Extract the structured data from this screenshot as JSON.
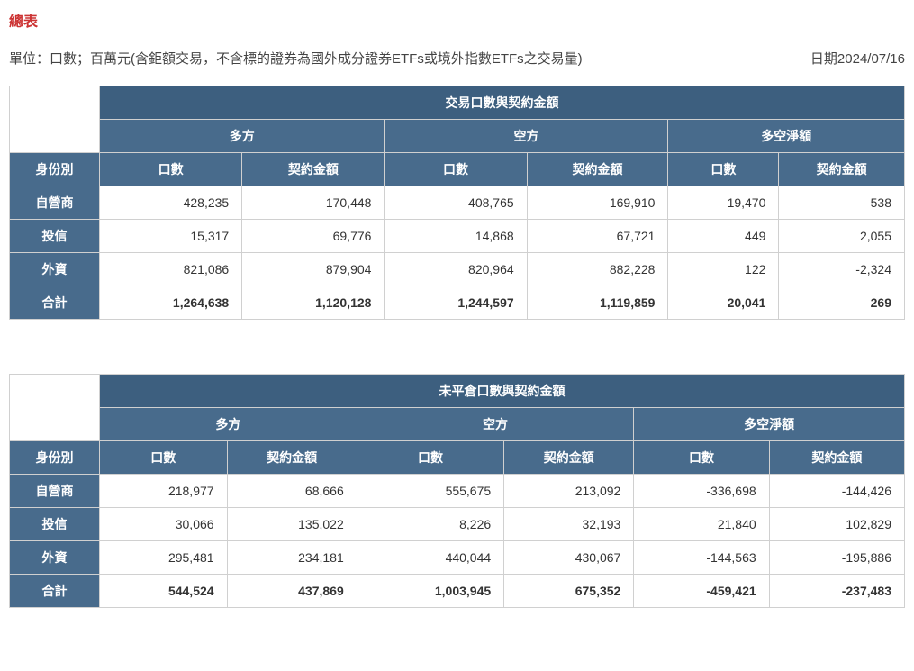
{
  "title": "總表",
  "unit_note": "單位：口數；百萬元(含鉅額交易，不含標的證券為國外成分證券ETFs或境外指數ETFs之交易量)",
  "date_label": "日期",
  "date_value": "2024/07/16",
  "labels": {
    "identity": "身份別",
    "long": "多方",
    "short": "空方",
    "net": "多空淨額",
    "contracts": "口數",
    "amount": "契約金額"
  },
  "table1": {
    "header_main": "交易口數與契約金額",
    "rows": [
      {
        "name": "自營商",
        "v": [
          "428,235",
          "170,448",
          "408,765",
          "169,910",
          "19,470",
          "538"
        ]
      },
      {
        "name": "投信",
        "v": [
          "15,317",
          "69,776",
          "14,868",
          "67,721",
          "449",
          "2,055"
        ]
      },
      {
        "name": "外資",
        "v": [
          "821,086",
          "879,904",
          "820,964",
          "882,228",
          "122",
          "-2,324"
        ]
      },
      {
        "name": "合計",
        "v": [
          "1,264,638",
          "1,120,128",
          "1,244,597",
          "1,119,859",
          "20,041",
          "269"
        ]
      }
    ]
  },
  "table2": {
    "header_main": "未平倉口數與契約金額",
    "rows": [
      {
        "name": "自營商",
        "v": [
          "218,977",
          "68,666",
          "555,675",
          "213,092",
          "-336,698",
          "-144,426"
        ]
      },
      {
        "name": "投信",
        "v": [
          "30,066",
          "135,022",
          "8,226",
          "32,193",
          "21,840",
          "102,829"
        ]
      },
      {
        "name": "外資",
        "v": [
          "295,481",
          "234,181",
          "440,044",
          "430,067",
          "-144,563",
          "-195,886"
        ]
      },
      {
        "name": "合計",
        "v": [
          "544,524",
          "437,869",
          "1,003,945",
          "675,352",
          "-459,421",
          "-237,483"
        ]
      }
    ]
  },
  "colors": {
    "title": "#cc3333",
    "header_bg": "#3d5f7f",
    "subheader_bg": "#486b8c",
    "header_text": "#ffffff",
    "border": "#d0d0d0",
    "body_text": "#333333"
  }
}
